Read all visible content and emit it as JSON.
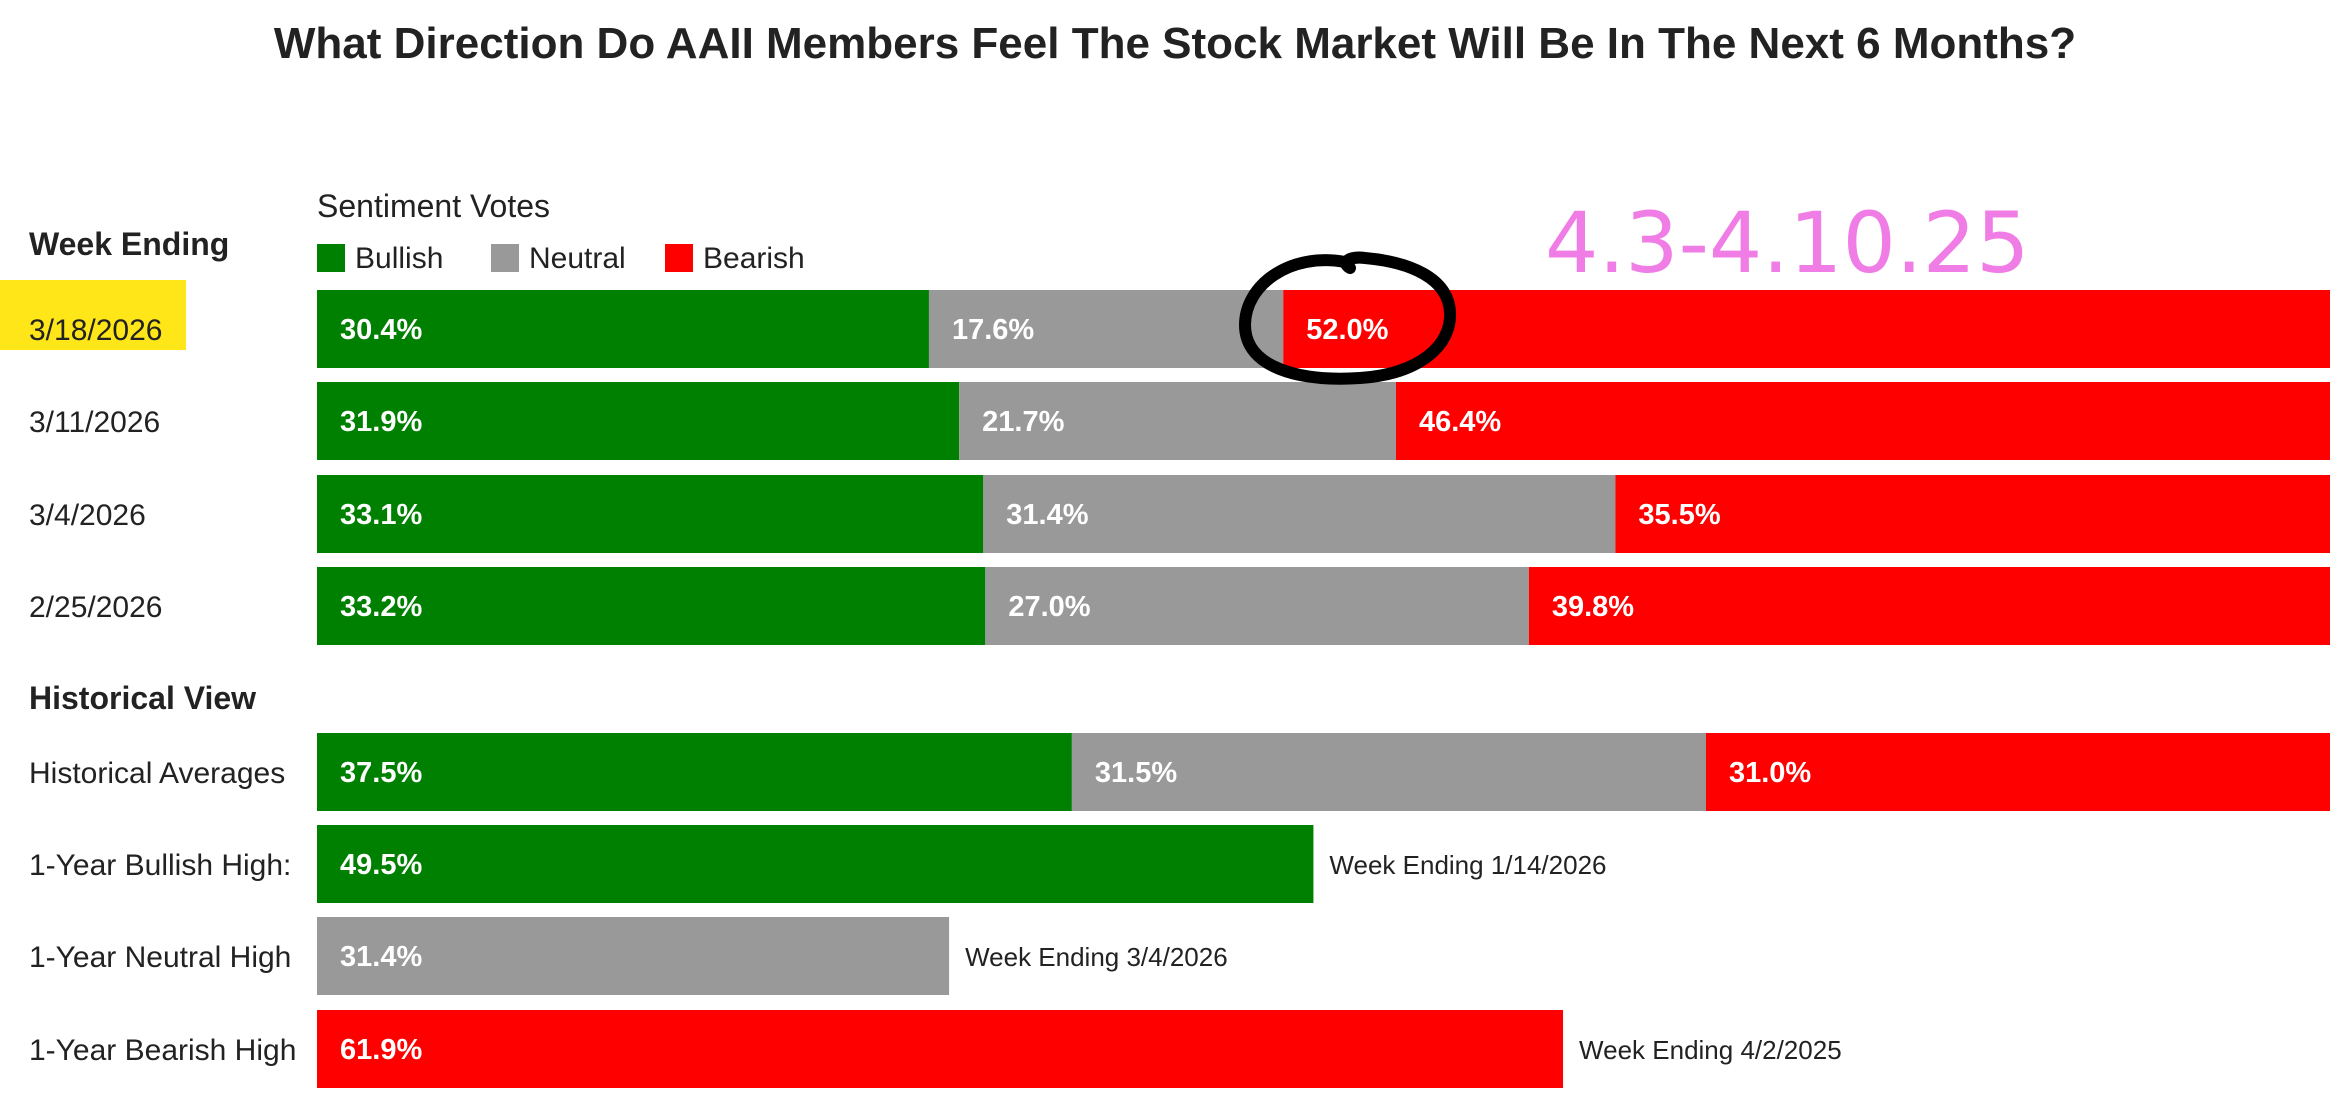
{
  "chart_data": {
    "type": "bar",
    "orientation": "horizontal",
    "stacked": true,
    "title": "What Direction Do AAII Members Feel The Stock Market Will Be In The Next 6 Months?",
    "subtitle": "Sentiment Votes",
    "row_header": "Week Ending",
    "section_header": "Historical View",
    "legend": [
      {
        "name": "Bullish",
        "color": "#008000"
      },
      {
        "name": "Neutral",
        "color": "#999999"
      },
      {
        "name": "Bearish",
        "color": "#ff0000"
      }
    ],
    "weekly": [
      {
        "label": "3/18/2026",
        "highlighted": true,
        "values": {
          "Bullish": 30.4,
          "Neutral": 17.6,
          "Bearish": 52.0
        }
      },
      {
        "label": "3/11/2026",
        "values": {
          "Bullish": 31.9,
          "Neutral": 21.7,
          "Bearish": 46.4
        }
      },
      {
        "label": "3/4/2026",
        "values": {
          "Bullish": 33.1,
          "Neutral": 31.4,
          "Bearish": 35.5
        }
      },
      {
        "label": "2/25/2026",
        "values": {
          "Bullish": 33.2,
          "Neutral": 27.0,
          "Bearish": 39.8
        }
      }
    ],
    "historical_average": {
      "label": "Historical Averages",
      "values": {
        "Bullish": 37.5,
        "Neutral": 31.5,
        "Bearish": 31.0
      }
    },
    "highs": [
      {
        "label": "1-Year Bullish High:",
        "series": "Bullish",
        "value": 49.5,
        "note": "Week Ending 1/14/2026"
      },
      {
        "label": "1-Year Neutral High",
        "series": "Neutral",
        "value": 31.4,
        "note": "Week Ending 3/4/2026"
      },
      {
        "label": "1-Year Bearish High",
        "series": "Bearish",
        "value": 61.9,
        "note": "Week Ending 4/2/2025"
      }
    ],
    "xlim": [
      0,
      100
    ],
    "annotations": {
      "handwritten_text": "4.3-4.10.25",
      "handwritten_color": "#f07ce6",
      "circled_value": "52.0%",
      "circle_color": "#000000",
      "row_highlight_color": "#ffe619"
    }
  }
}
